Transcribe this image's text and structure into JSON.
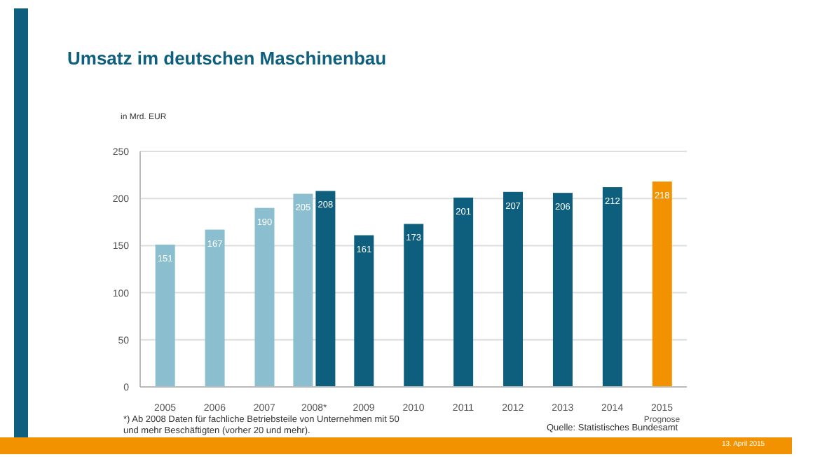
{
  "chart_data": {
    "type": "bar",
    "title": "Umsatz im deutschen Maschinenbau",
    "ylabel": "in Mrd. EUR",
    "categories": [
      "2005",
      "2006",
      "2007",
      "2008*",
      "2009",
      "2010",
      "2011",
      "2012",
      "2013",
      "2014",
      "2015$_{Prognose}$"
    ],
    "series": [
      {
        "color": "#8bbfcf",
        "values": [
          151,
          167,
          190,
          205,
          null,
          null,
          null,
          null,
          null,
          null,
          null
        ]
      },
      {
        "color": "#0e5f7e",
        "colors": [
          null,
          null,
          null,
          "#0e5f7e",
          "#0e5f7e",
          "#0e5f7e",
          "#0e5f7e",
          "#0e5f7e",
          "#0e5f7e",
          "#0e5f7e",
          "#f39200"
        ],
        "values": [
          null,
          null,
          null,
          208,
          161,
          173,
          201,
          207,
          206,
          212,
          218
        ]
      }
    ],
    "ylim": [
      0,
      250
    ],
    "yticks": [
      0,
      50,
      100,
      150,
      200,
      250
    ],
    "grid": "y",
    "legend": false,
    "data_labels": true,
    "annotations": [
      "*) Ab 2008 Daten für fachliche Betriebsteile von Unternehmen mit 50 und mehr Beschäftigten (vorher 20 und mehr).",
      "Quelle: Statistisches Bundesamt",
      "13. April 2015"
    ]
  }
}
